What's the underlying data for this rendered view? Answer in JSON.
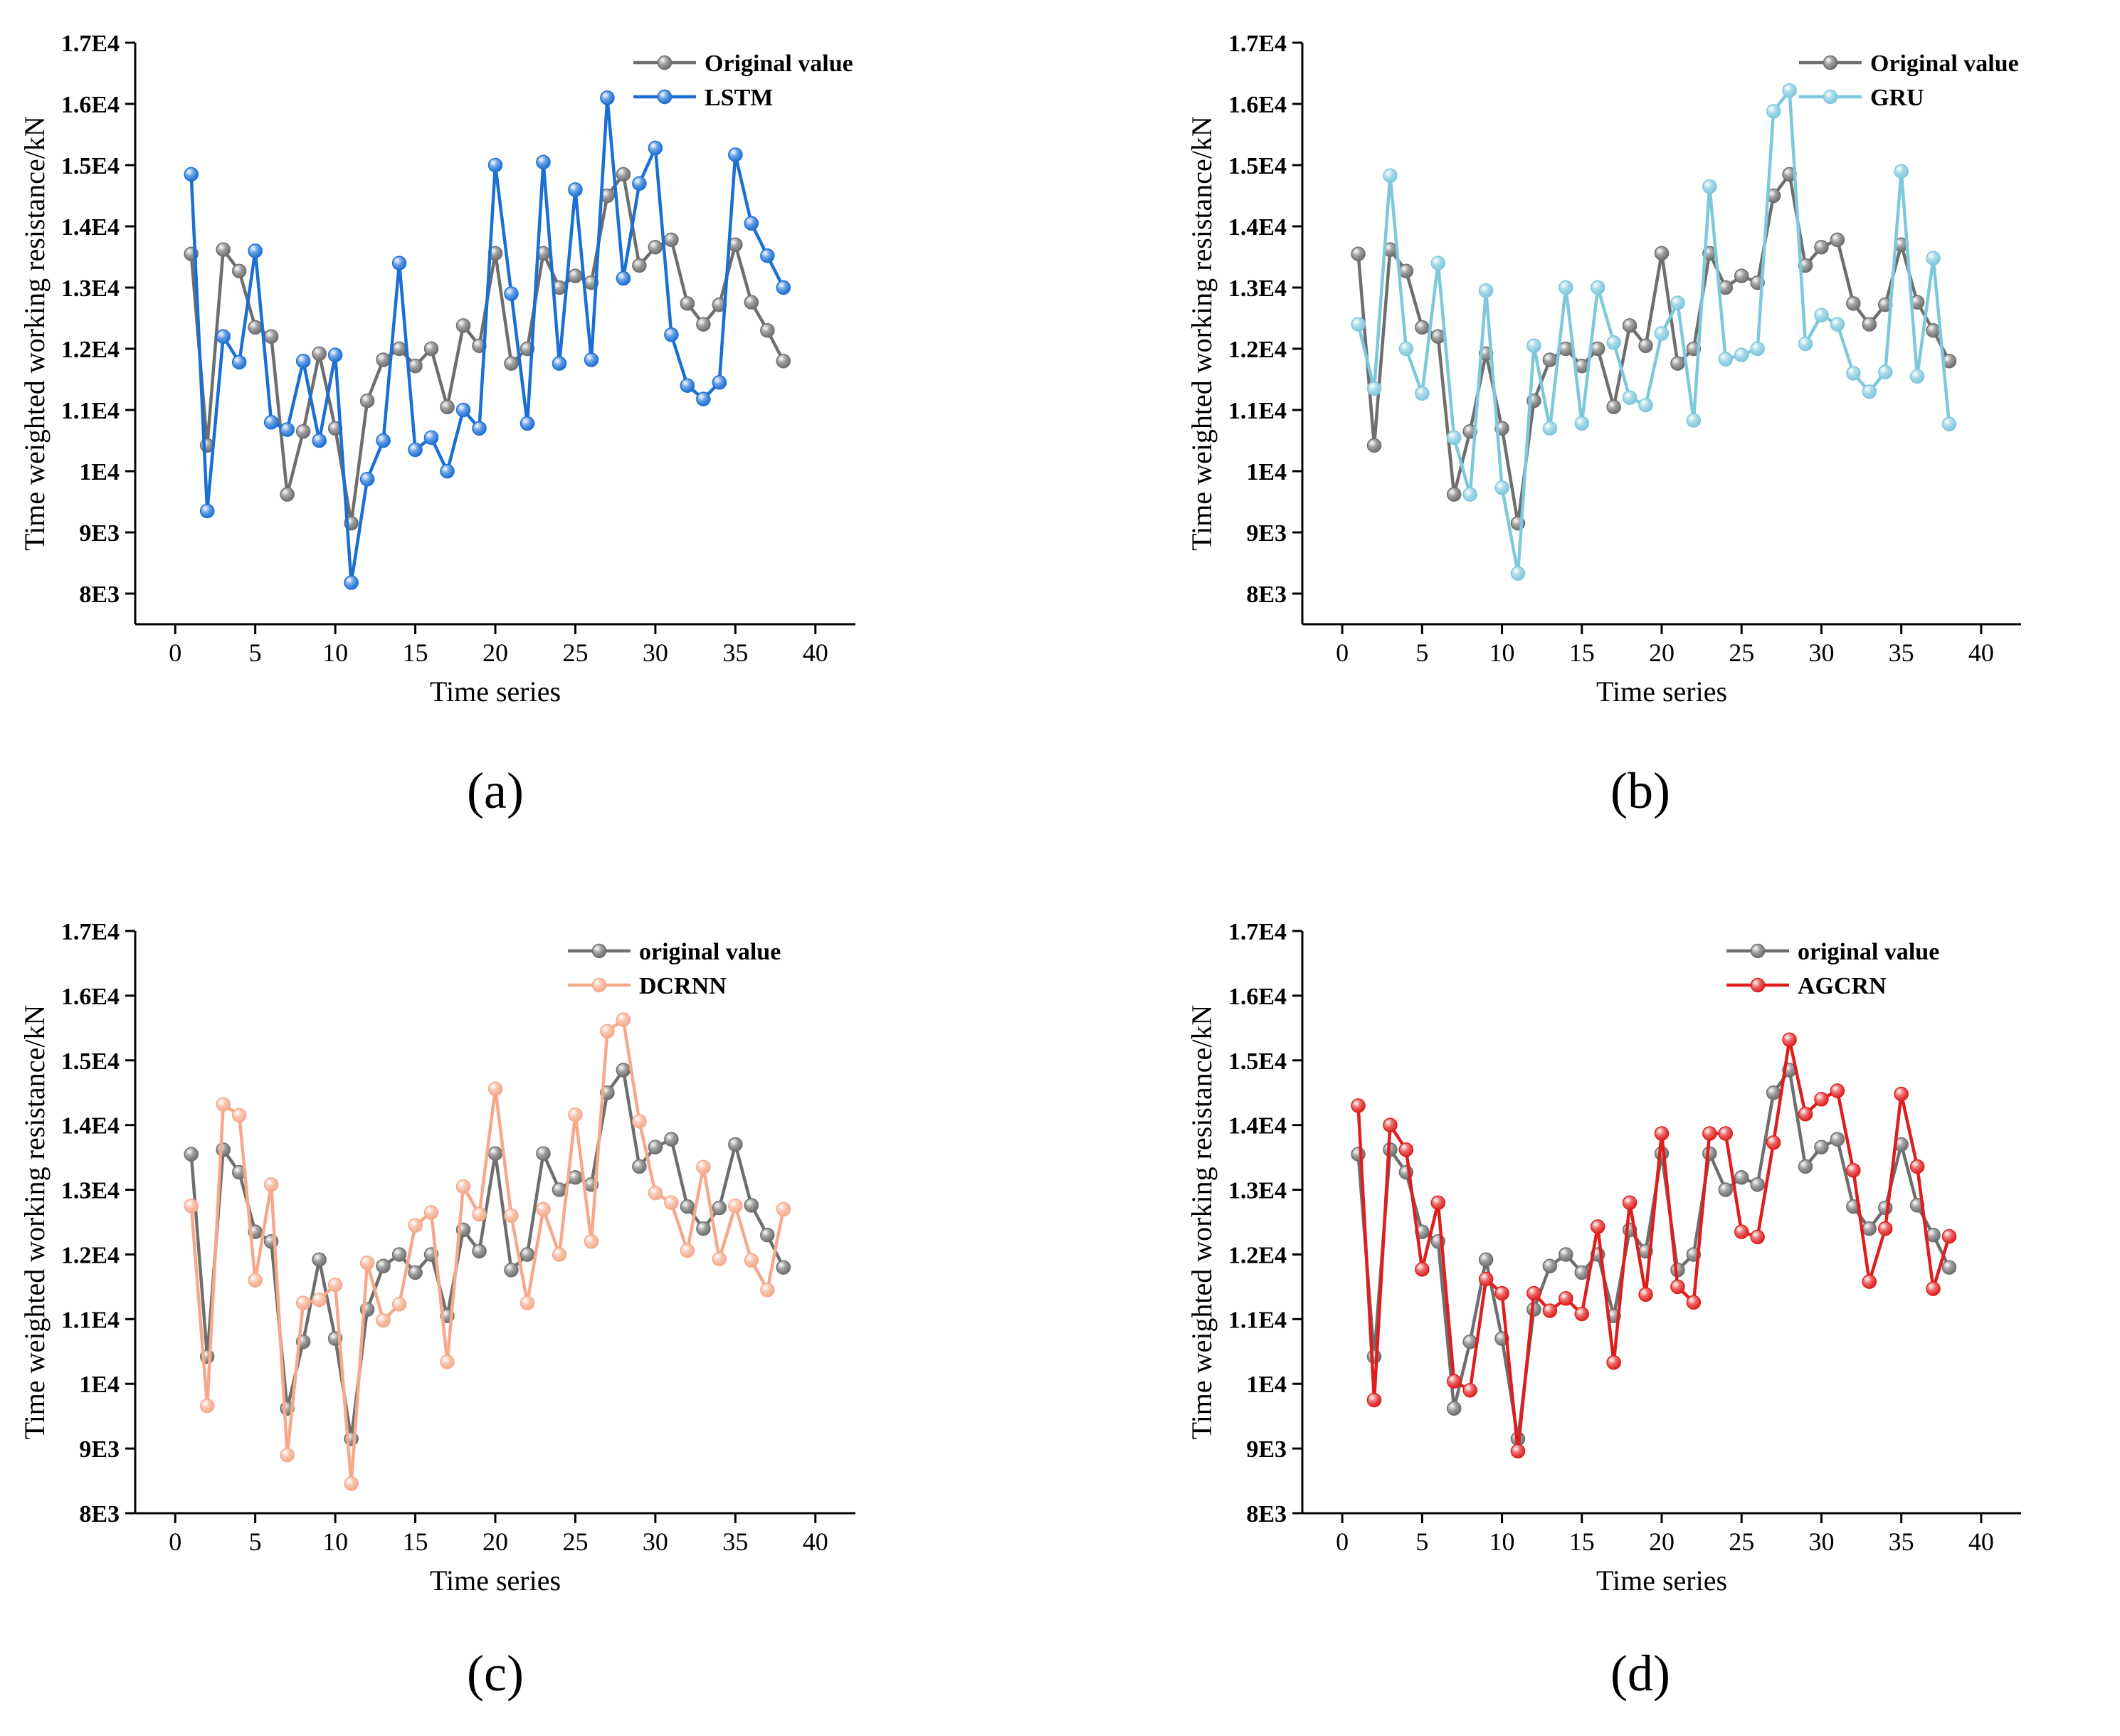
{
  "chart_data": [
    {
      "type": "line",
      "panel_label": "(a)",
      "xlabel": "Time series",
      "ylabel": "Time weighted working resistance/kN",
      "xlim": [
        -2.5,
        42.5
      ],
      "ylim": [
        7500,
        17000
      ],
      "xticks": [
        0,
        5,
        10,
        15,
        20,
        25,
        30,
        35,
        40
      ],
      "xtick_labels": [
        "0",
        "5",
        "10",
        "15",
        "20",
        "25",
        "30",
        "35",
        "40"
      ],
      "yticks": [
        8000,
        9000,
        10000,
        11000,
        12000,
        13000,
        14000,
        15000,
        16000,
        17000
      ],
      "ytick_labels": [
        "8E3",
        "9E3",
        "1E4",
        "1.1E4",
        "1.2E4",
        "1.3E4",
        "1.4E4",
        "1.5E4",
        "1.6E4",
        "1.7E4"
      ],
      "legend_position": "top-right",
      "x": [
        1,
        2,
        3,
        4,
        5,
        6,
        7,
        8,
        9,
        10,
        11,
        12,
        13,
        14,
        15,
        16,
        17,
        18,
        19,
        20,
        21,
        22,
        23,
        24,
        25,
        26,
        27,
        28,
        29,
        30,
        31,
        32,
        33,
        34,
        35,
        36,
        37,
        38
      ],
      "series": [
        {
          "name": "Original value",
          "color": "#6e6e6e",
          "values": [
            13550,
            10420,
            13620,
            13270,
            12350,
            12200,
            9620,
            10650,
            11920,
            10700,
            9150,
            11150,
            11820,
            12000,
            11720,
            12000,
            11050,
            12380,
            12050,
            13560,
            11760,
            12000,
            13560,
            13000,
            13190,
            13080,
            14500,
            14850,
            13360,
            13660,
            13780,
            12740,
            12400,
            12720,
            13700,
            12760,
            12300,
            11800
          ]
        },
        {
          "name": "LSTM",
          "color": "#1a6fd4",
          "values": [
            14850,
            9350,
            12200,
            11780,
            13600,
            10800,
            10680,
            11800,
            10500,
            11900,
            8180,
            9870,
            10500,
            13400,
            10350,
            10550,
            10000,
            11000,
            10700,
            15000,
            12900,
            10780,
            15050,
            11760,
            14600,
            11820,
            16100,
            13150,
            14700,
            15280,
            12230,
            11400,
            11180,
            11450,
            15170,
            14050,
            13520,
            13000
          ]
        }
      ]
    },
    {
      "type": "line",
      "panel_label": "(b)",
      "xlabel": "Time series",
      "ylabel": "Time weighted working resistance/kN",
      "xlim": [
        -2.5,
        42.5
      ],
      "ylim": [
        7500,
        17000
      ],
      "xticks": [
        0,
        5,
        10,
        15,
        20,
        25,
        30,
        35,
        40
      ],
      "xtick_labels": [
        "0",
        "5",
        "10",
        "15",
        "20",
        "25",
        "30",
        "35",
        "40"
      ],
      "yticks": [
        8000,
        9000,
        10000,
        11000,
        12000,
        13000,
        14000,
        15000,
        16000,
        17000
      ],
      "ytick_labels": [
        "8E3",
        "9E3",
        "1E4",
        "1.1E4",
        "1.2E4",
        "1.3E4",
        "1.4E4",
        "1.5E4",
        "1.6E4",
        "1.7E4"
      ],
      "legend_position": "top-right",
      "x": [
        1,
        2,
        3,
        4,
        5,
        6,
        7,
        8,
        9,
        10,
        11,
        12,
        13,
        14,
        15,
        16,
        17,
        18,
        19,
        20,
        21,
        22,
        23,
        24,
        25,
        26,
        27,
        28,
        29,
        30,
        31,
        32,
        33,
        34,
        35,
        36,
        37,
        38
      ],
      "series": [
        {
          "name": "Original value",
          "color": "#6e6e6e",
          "values": [
            13550,
            10420,
            13620,
            13270,
            12350,
            12200,
            9620,
            10650,
            11920,
            10700,
            9150,
            11150,
            11820,
            12000,
            11720,
            12000,
            11050,
            12380,
            12050,
            13560,
            11760,
            12000,
            13560,
            13000,
            13190,
            13080,
            14500,
            14850,
            13360,
            13660,
            13780,
            12740,
            12400,
            12720,
            13700,
            12760,
            12300,
            11800
          ]
        },
        {
          "name": "GRU",
          "color": "#7dc8dc",
          "values": [
            12400,
            11350,
            14830,
            12000,
            11270,
            13400,
            10550,
            9620,
            12950,
            9730,
            8330,
            12050,
            10700,
            13000,
            10780,
            13000,
            12100,
            11200,
            11080,
            12250,
            12750,
            10830,
            14650,
            11830,
            11900,
            12000,
            15880,
            16220,
            12080,
            12550,
            12400,
            11600,
            11300,
            11620,
            14900,
            11550,
            13480,
            10770
          ]
        }
      ]
    },
    {
      "type": "line",
      "panel_label": "(c)",
      "xlabel": "Time series",
      "ylabel": "Time weighted working resistance/kN",
      "xlim": [
        -2.5,
        42.5
      ],
      "ylim": [
        8000,
        17000
      ],
      "xticks": [
        0,
        5,
        10,
        15,
        20,
        25,
        30,
        35,
        40
      ],
      "xtick_labels": [
        "0",
        "5",
        "10",
        "15",
        "20",
        "25",
        "30",
        "35",
        "40"
      ],
      "yticks": [
        8000,
        9000,
        10000,
        11000,
        12000,
        13000,
        14000,
        15000,
        16000,
        17000
      ],
      "ytick_labels": [
        "8E3",
        "9E3",
        "1E4",
        "1.1E4",
        "1.2E4",
        "1.3E4",
        "1.4E4",
        "1.5E4",
        "1.6E4",
        "1.7E4"
      ],
      "legend_position": "top-right",
      "x": [
        1,
        2,
        3,
        4,
        5,
        6,
        7,
        8,
        9,
        10,
        11,
        12,
        13,
        14,
        15,
        16,
        17,
        18,
        19,
        20,
        21,
        22,
        23,
        24,
        25,
        26,
        27,
        28,
        29,
        30,
        31,
        32,
        33,
        34,
        35,
        36,
        37,
        38
      ],
      "series": [
        {
          "name": "original value",
          "color": "#6e6e6e",
          "values": [
            13550,
            10420,
            13620,
            13270,
            12350,
            12200,
            9620,
            10650,
            11920,
            10700,
            9150,
            11150,
            11820,
            12000,
            11720,
            12000,
            11050,
            12380,
            12050,
            13560,
            11760,
            12000,
            13560,
            13000,
            13190,
            13080,
            14500,
            14850,
            13360,
            13660,
            13780,
            12740,
            12400,
            12720,
            13700,
            12760,
            12300,
            11800
          ]
        },
        {
          "name": "DCRNN",
          "color": "#f5a98a",
          "values": [
            12750,
            9660,
            14320,
            14150,
            11600,
            13080,
            8900,
            11250,
            11300,
            11530,
            8460,
            11870,
            10980,
            11230,
            12450,
            12650,
            10340,
            13050,
            12620,
            14560,
            12600,
            11250,
            12700,
            12000,
            14160,
            12200,
            15450,
            15630,
            14060,
            12950,
            12800,
            12060,
            13350,
            11930,
            12750,
            11910,
            11450,
            12700
          ]
        }
      ]
    },
    {
      "type": "line",
      "panel_label": "(d)",
      "xlabel": "Time series",
      "ylabel": "Time weighted working resistance/kN",
      "xlim": [
        -2.5,
        42.5
      ],
      "ylim": [
        8000,
        17000
      ],
      "xticks": [
        0,
        5,
        10,
        15,
        20,
        25,
        30,
        35,
        40
      ],
      "xtick_labels": [
        "0",
        "5",
        "10",
        "15",
        "20",
        "25",
        "30",
        "35",
        "40"
      ],
      "yticks": [
        8000,
        9000,
        10000,
        11000,
        12000,
        13000,
        14000,
        15000,
        16000,
        17000
      ],
      "ytick_labels": [
        "8E3",
        "9E3",
        "1E4",
        "1.1E4",
        "1.2E4",
        "1.3E4",
        "1.4E4",
        "1.5E4",
        "1.6E4",
        "1.7E4"
      ],
      "legend_position": "top-right",
      "x": [
        1,
        2,
        3,
        4,
        5,
        6,
        7,
        8,
        9,
        10,
        11,
        12,
        13,
        14,
        15,
        16,
        17,
        18,
        19,
        20,
        21,
        22,
        23,
        24,
        25,
        26,
        27,
        28,
        29,
        30,
        31,
        32,
        33,
        34,
        35,
        36,
        37,
        38
      ],
      "series": [
        {
          "name": "original value",
          "color": "#6e6e6e",
          "values": [
            13550,
            10420,
            13620,
            13270,
            12350,
            12200,
            9620,
            10650,
            11920,
            10700,
            9150,
            11150,
            11820,
            12000,
            11720,
            12000,
            11050,
            12380,
            12050,
            13560,
            11760,
            12000,
            13560,
            13000,
            13190,
            13080,
            14500,
            14850,
            13360,
            13660,
            13780,
            12740,
            12400,
            12720,
            13700,
            12760,
            12300,
            11800
          ]
        },
        {
          "name": "AGCRN",
          "color": "#e01d1d",
          "values": [
            14300,
            9750,
            14000,
            13620,
            11770,
            12800,
            10040,
            9900,
            11620,
            11400,
            8960,
            11400,
            11130,
            11320,
            11080,
            12430,
            10330,
            12800,
            11380,
            13870,
            11500,
            11260,
            13870,
            13870,
            12350,
            12270,
            13730,
            15320,
            14170,
            14400,
            14530,
            13300,
            11580,
            12400,
            14480,
            13360,
            11470,
            12280
          ]
        }
      ]
    }
  ]
}
